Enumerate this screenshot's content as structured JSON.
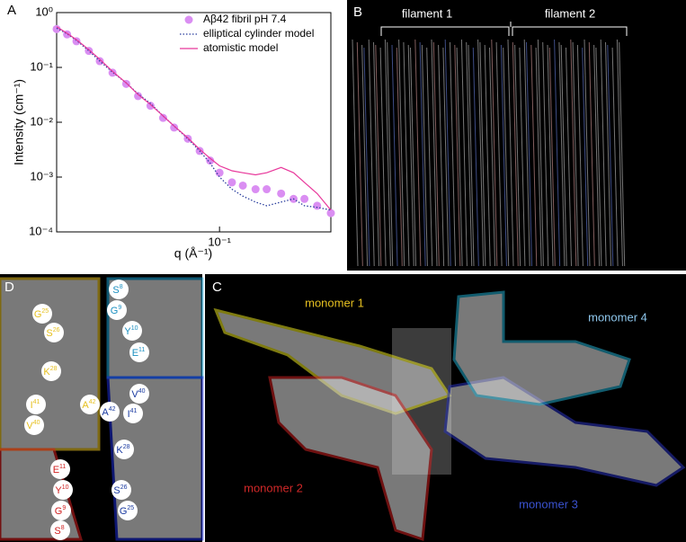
{
  "panel_labels": [
    "A",
    "B",
    "C",
    "D"
  ],
  "chart_data": {
    "type": "line",
    "x_label": "q (Å⁻¹)",
    "y_label": "Intensity (cm⁻¹)",
    "log_x": true,
    "log_y": true,
    "xlim": [
      0.016,
      0.35
    ],
    "ylim": [
      0.0001,
      1
    ],
    "xticks": [
      {
        "value": 0.1,
        "label": "10⁻¹"
      }
    ],
    "yticks": [
      {
        "value": 1,
        "label": "10⁰"
      },
      {
        "value": 0.1,
        "label": "10⁻¹"
      },
      {
        "value": 0.01,
        "label": "10⁻²"
      },
      {
        "value": 0.001,
        "label": "10⁻³"
      },
      {
        "value": 0.0001,
        "label": "10⁻⁴"
      }
    ],
    "legend": "top-right",
    "x": [
      0.016,
      0.018,
      0.02,
      0.023,
      0.026,
      0.03,
      0.035,
      0.04,
      0.046,
      0.053,
      0.06,
      0.07,
      0.08,
      0.09,
      0.1,
      0.115,
      0.13,
      0.15,
      0.17,
      0.2,
      0.23,
      0.26,
      0.3,
      0.35
    ],
    "series": [
      {
        "name": "Aβ42 fibril pH 7.4",
        "style": "marker",
        "color": "#da8ef2",
        "values": [
          0.5,
          0.4,
          0.3,
          0.2,
          0.13,
          0.08,
          0.05,
          0.03,
          0.02,
          0.012,
          0.008,
          0.005,
          0.003,
          0.002,
          0.0012,
          0.0008,
          0.0007,
          0.0006,
          0.0006,
          0.0005,
          0.0004,
          0.0004,
          0.0003,
          0.00022
        ]
      },
      {
        "name": "elliptical cylinder model",
        "style": "dotted",
        "color": "#2b3f9e",
        "values": [
          0.52,
          0.41,
          0.31,
          0.2,
          0.13,
          0.082,
          0.052,
          0.033,
          0.022,
          0.013,
          0.0085,
          0.005,
          0.003,
          0.0018,
          0.001,
          0.0006,
          0.00045,
          0.00035,
          0.0003,
          0.00035,
          0.0004,
          0.0003,
          0.00028,
          0.00025
        ]
      },
      {
        "name": "atomistic model",
        "style": "solid",
        "color": "#e8389b",
        "values": [
          0.55,
          0.42,
          0.32,
          0.21,
          0.14,
          0.085,
          0.052,
          0.032,
          0.021,
          0.013,
          0.0085,
          0.0052,
          0.0032,
          0.0022,
          0.0016,
          0.0013,
          0.0012,
          0.0011,
          0.0012,
          0.0015,
          0.0012,
          0.0008,
          0.0005,
          0.00025
        ]
      }
    ]
  },
  "panel_b": {
    "filaments": [
      "filament 1",
      "filament 2"
    ]
  },
  "panel_c": {
    "monomers": [
      "monomer 1",
      "monomer 2",
      "monomer 3",
      "monomer 4"
    ]
  },
  "panel_d": {
    "residues": [
      {
        "letter": "G",
        "num": "25"
      },
      {
        "letter": "S",
        "num": "26"
      },
      {
        "letter": "K",
        "num": "28"
      },
      {
        "letter": "I",
        "num": "41"
      },
      {
        "letter": "A",
        "num": "42"
      },
      {
        "letter": "V",
        "num": "40"
      },
      {
        "letter": "E",
        "num": "11"
      },
      {
        "letter": "Y",
        "num": "10"
      },
      {
        "letter": "G",
        "num": "9"
      },
      {
        "letter": "S",
        "num": "8"
      },
      {
        "letter": "S",
        "num": "8"
      },
      {
        "letter": "G",
        "num": "9"
      },
      {
        "letter": "Y",
        "num": "10"
      },
      {
        "letter": "E",
        "num": "11"
      },
      {
        "letter": "V",
        "num": "40"
      },
      {
        "letter": "A",
        "num": "42"
      },
      {
        "letter": "I",
        "num": "41"
      },
      {
        "letter": "K",
        "num": "28"
      },
      {
        "letter": "S",
        "num": "26"
      },
      {
        "letter": "G",
        "num": "25"
      }
    ]
  }
}
